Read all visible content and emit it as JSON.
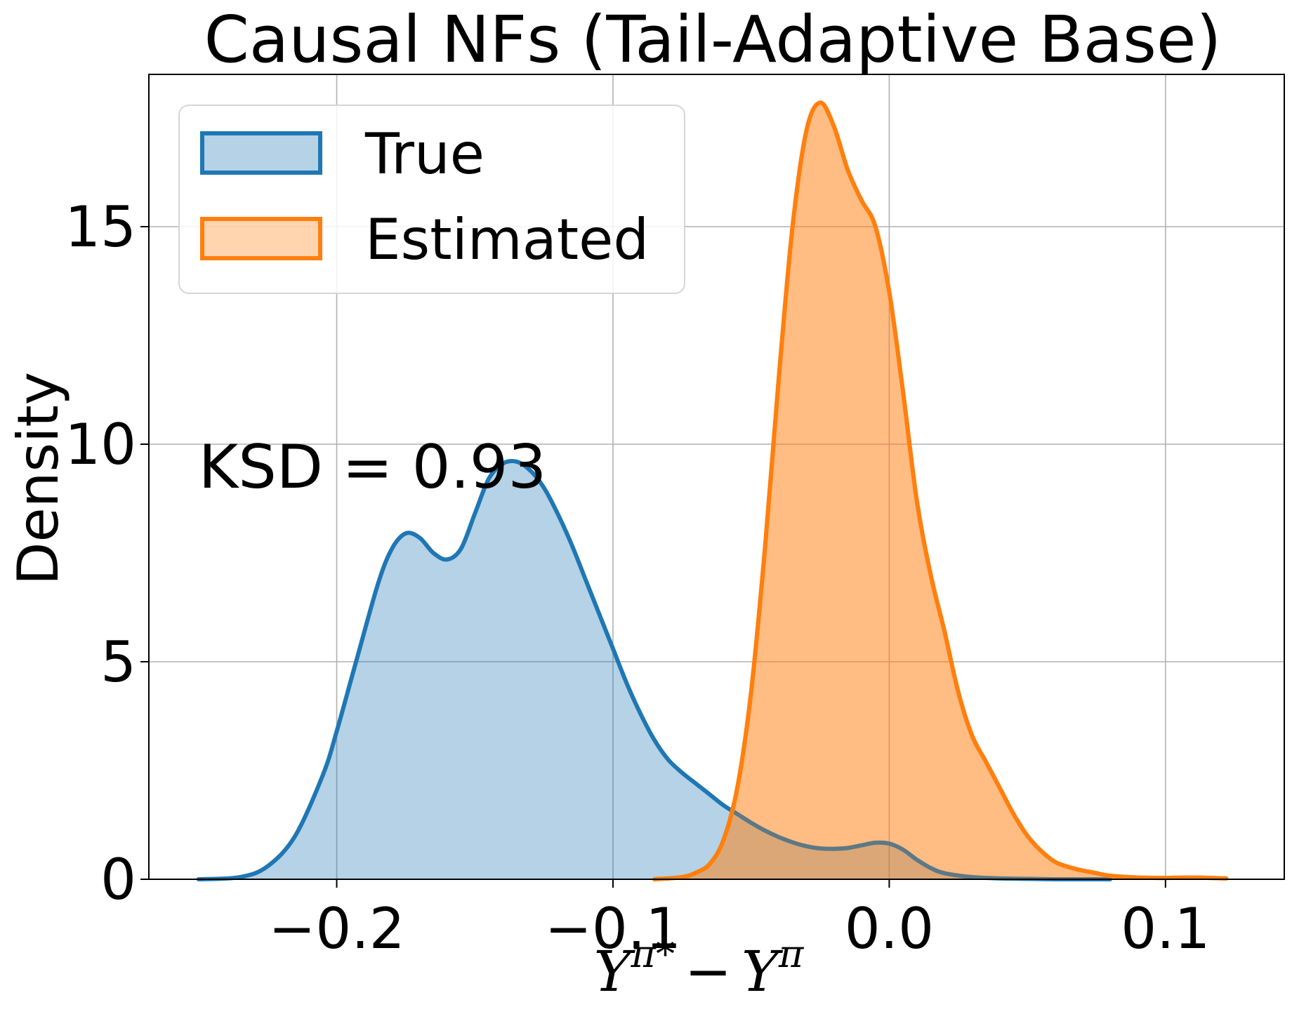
{
  "chart_data": {
    "type": "area",
    "title": "Causal NFs (Tail-Adaptive Base)",
    "xlabel": "Y^{π*} − Y^{π}",
    "xlabel_parts": {
      "base1": "Y",
      "sup1": "π*",
      "minus": "−",
      "base2": "Y",
      "sup2": "π"
    },
    "ylabel": "Density",
    "xlim": [
      -0.268,
      0.143
    ],
    "ylim": [
      0,
      18.5
    ],
    "xticks": [
      -0.2,
      -0.1,
      0.0,
      0.1
    ],
    "xtick_labels": [
      "−0.2",
      "−0.1",
      "0.0",
      "0.1"
    ],
    "yticks": [
      0,
      5,
      10,
      15
    ],
    "ytick_labels": [
      "0",
      "5",
      "10",
      "15"
    ],
    "grid": true,
    "legend": {
      "position": "upper-left",
      "entries": [
        "True",
        "Estimated"
      ]
    },
    "annotation": {
      "text": "KSD = 0.93",
      "x": -0.25,
      "y": 9.0
    },
    "colors": {
      "True": "#1f77b4",
      "Estimated": "#ff7f0e"
    },
    "series": [
      {
        "name": "True",
        "fill_alpha": 0.33,
        "x": [
          -0.25,
          -0.235,
          -0.225,
          -0.215,
          -0.205,
          -0.2,
          -0.193,
          -0.185,
          -0.18,
          -0.175,
          -0.17,
          -0.165,
          -0.16,
          -0.155,
          -0.15,
          -0.145,
          -0.14,
          -0.135,
          -0.13,
          -0.125,
          -0.12,
          -0.115,
          -0.11,
          -0.105,
          -0.1,
          -0.095,
          -0.09,
          -0.085,
          -0.08,
          -0.075,
          -0.07,
          -0.065,
          -0.06,
          -0.055,
          -0.05,
          -0.045,
          -0.04,
          -0.035,
          -0.03,
          -0.025,
          -0.02,
          -0.015,
          -0.01,
          -0.005,
          0.0,
          0.005,
          0.01,
          0.015,
          0.02,
          0.03,
          0.04,
          0.05,
          0.06,
          0.07,
          0.08
        ],
        "y": [
          0.0,
          0.05,
          0.3,
          1.0,
          2.4,
          3.4,
          5.0,
          6.8,
          7.6,
          7.95,
          7.85,
          7.5,
          7.35,
          7.6,
          8.4,
          9.2,
          9.55,
          9.6,
          9.4,
          9.0,
          8.4,
          7.7,
          6.9,
          6.1,
          5.3,
          4.5,
          3.8,
          3.2,
          2.75,
          2.45,
          2.2,
          1.95,
          1.7,
          1.5,
          1.3,
          1.12,
          0.97,
          0.85,
          0.76,
          0.71,
          0.7,
          0.72,
          0.78,
          0.84,
          0.82,
          0.68,
          0.45,
          0.26,
          0.14,
          0.05,
          0.02,
          0.01,
          0.0,
          0.0,
          0.0
        ]
      },
      {
        "name": "Estimated",
        "fill_alpha": 0.33,
        "x": [
          -0.085,
          -0.075,
          -0.07,
          -0.065,
          -0.06,
          -0.055,
          -0.05,
          -0.045,
          -0.04,
          -0.035,
          -0.03,
          -0.025,
          -0.02,
          -0.015,
          -0.01,
          -0.005,
          0.0,
          0.005,
          0.01,
          0.015,
          0.02,
          0.025,
          0.03,
          0.035,
          0.04,
          0.045,
          0.05,
          0.055,
          0.06,
          0.065,
          0.07,
          0.075,
          0.08,
          0.09,
          0.1,
          0.11,
          0.122
        ],
        "y": [
          0.0,
          0.05,
          0.15,
          0.35,
          0.9,
          2.1,
          4.3,
          7.6,
          11.5,
          15.0,
          17.2,
          17.85,
          17.3,
          16.3,
          15.6,
          15.0,
          13.5,
          11.2,
          8.7,
          7.0,
          5.7,
          4.3,
          3.3,
          2.7,
          2.1,
          1.5,
          1.0,
          0.65,
          0.4,
          0.28,
          0.2,
          0.14,
          0.08,
          0.04,
          0.03,
          0.04,
          0.02
        ]
      }
    ]
  }
}
